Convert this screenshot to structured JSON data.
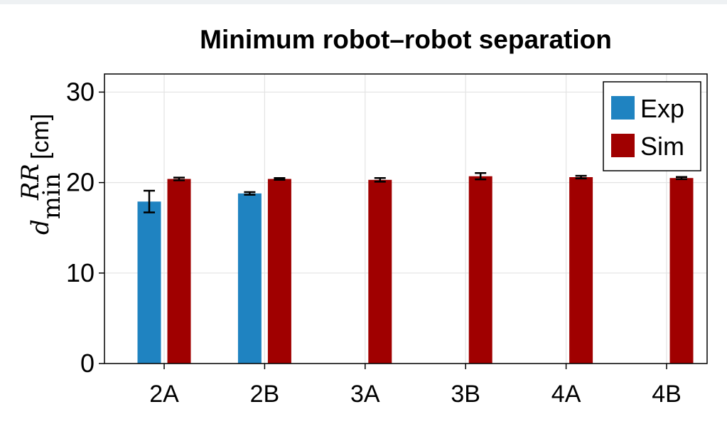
{
  "chart_data": {
    "type": "bar",
    "title": "Minimum robot–robot separation",
    "ylabel": {
      "symbol": "d",
      "subscript": "min",
      "superscript": "RR",
      "unit": "[cm]"
    },
    "categories": [
      "2A",
      "2B",
      "3A",
      "3B",
      "4A",
      "4B"
    ],
    "ylim": [
      0,
      32
    ],
    "yticks": [
      "0",
      "10",
      "20",
      "30"
    ],
    "ytick_values": [
      0,
      10,
      20,
      30
    ],
    "grid": true,
    "legend_position": "top-right",
    "series": [
      {
        "name": "Exp",
        "color": "#1f83c1",
        "values": [
          17.9,
          18.8,
          null,
          null,
          null,
          null
        ],
        "errors": [
          1.2,
          0.15,
          null,
          null,
          null,
          null
        ]
      },
      {
        "name": "Sim",
        "color": "#a00000",
        "values": [
          20.4,
          20.4,
          20.3,
          20.7,
          20.6,
          20.5
        ],
        "errors": [
          0.15,
          0.1,
          0.2,
          0.35,
          0.15,
          0.12
        ]
      }
    ]
  }
}
